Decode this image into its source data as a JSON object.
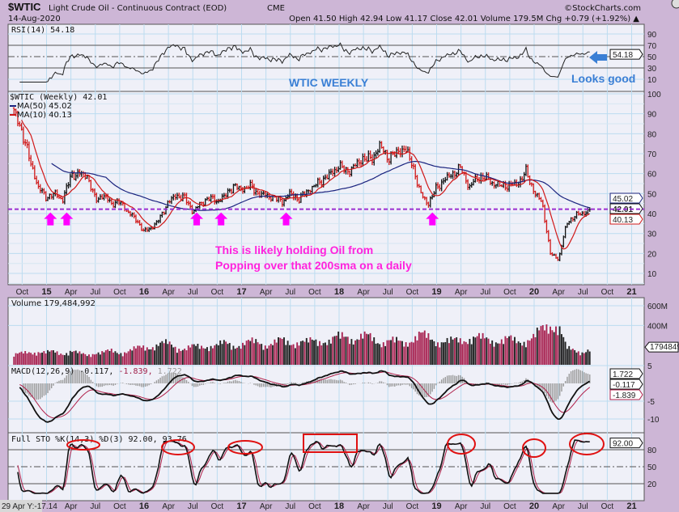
{
  "header": {
    "symbol": "$WTIC",
    "name": "Light Crude Oil - Continuous Contract (EOD)",
    "exchange": "CME",
    "watermark": "©StockCharts.com",
    "date": "14-Aug-2020",
    "quote": "Open 41.50  High 42.94  Low 41.17  Close 42.01  Volume 179.5M  Chg +0.79 (+1.92%) ▲"
  },
  "annotations": {
    "title": "WTIC WEEKLY",
    "looks_good": "Looks good",
    "note_line1": "This is likely holding Oil from",
    "note_line2": "Popping over that 200sma on a daily",
    "support_level": 42.2,
    "arrow_dates": [
      "2015-01",
      "2015-03",
      "2016-07",
      "2016-10",
      "2017-06",
      "2018-12"
    ],
    "arrow_color": "#ff00ff",
    "note_color": "#ff22dd",
    "blue_note_color": "#3a7fd5",
    "circle_color": "#e01010"
  },
  "tooltip": "29 Apr Y:-17.14",
  "chart_data": {
    "type": "line",
    "title": "$WTIC Light Crude Oil - Continuous Contract (EOD) Weekly",
    "start_month": "2014-09",
    "x_tick_labels": [
      "Oct",
      "15",
      "Apr",
      "Jul",
      "Oct",
      "16",
      "Apr",
      "Jul",
      "Oct",
      "17",
      "Apr",
      "Jul",
      "Oct",
      "18",
      "Apr",
      "Jul",
      "Oct",
      "19",
      "Apr",
      "Jul",
      "Oct",
      "20",
      "Apr",
      "Jul",
      "Oct",
      "21"
    ],
    "rsi": {
      "legend": "RSI(14) 54.18",
      "value_tag": "54.18",
      "ylim": [
        0,
        100
      ],
      "ticks": [
        "90",
        "70",
        "50",
        "30",
        "10"
      ],
      "tick_values": [
        90,
        70,
        50,
        30,
        10
      ]
    },
    "price": {
      "legend": "$WTIC (Weekly) 42.01",
      "ma50_legend": "MA(50) 45.02",
      "ma10_legend": "MA(10) 40.13",
      "ma50_tag": "45.02",
      "close_tag": "42.01",
      "ma10_tag": "40.13",
      "ylim": [
        5,
        100
      ],
      "ticks": [
        "100",
        "90",
        "80",
        "70",
        "60",
        "50",
        "40",
        "30",
        "20",
        "10"
      ],
      "tick_values": [
        100,
        90,
        80,
        70,
        60,
        50,
        40,
        30,
        20,
        10
      ],
      "monthly_close": [
        91,
        81,
        66,
        53,
        48,
        50,
        47,
        59,
        60,
        59,
        47,
        49,
        45,
        46,
        41,
        37,
        31,
        33,
        38,
        46,
        49,
        48,
        41,
        45,
        48,
        46,
        49,
        54,
        52,
        54,
        50,
        49,
        48,
        46,
        50,
        47,
        51,
        54,
        57,
        60,
        64,
        61,
        64,
        68,
        67,
        74,
        68,
        70,
        73,
        65,
        50,
        45,
        53,
        57,
        60,
        63,
        53,
        58,
        58,
        55,
        54,
        54,
        55,
        61,
        51,
        45,
        20,
        17,
        35,
        39,
        40,
        42.01
      ],
      "ma50_color": "#1a237e",
      "ma10_color": "#d01818"
    },
    "volume": {
      "legend": "Volume 179,484,992",
      "value_tag": "179484992",
      "ticks": [
        "600M",
        "400M"
      ],
      "tick_values": [
        600,
        400
      ],
      "monthly_avg_millions": [
        110,
        120,
        140,
        150,
        130,
        140,
        130,
        150,
        120,
        110,
        140,
        130,
        150,
        140,
        150,
        170,
        200,
        210,
        220,
        230,
        200,
        180,
        190,
        200,
        220,
        210,
        230,
        220,
        230,
        240,
        250,
        230,
        240,
        260,
        250,
        260,
        240,
        260,
        280,
        260,
        300,
        330,
        290,
        300,
        300,
        260,
        260,
        250,
        250,
        290,
        320,
        300,
        270,
        260,
        250,
        280,
        300,
        290,
        280,
        280,
        270,
        270,
        260,
        280,
        300,
        380,
        460,
        440,
        170,
        160,
        150,
        170
      ],
      "up_color": "#222222",
      "down_color": "#a82452"
    },
    "macd": {
      "legend_main": "MACD(12,26,9) -0.117,",
      "legend_signal": " -1.839,",
      "legend_hist": " 1.722",
      "tags": [
        "1.722",
        "-0.117",
        "-1.839"
      ],
      "ticks": [
        "5",
        "-5",
        "-10"
      ],
      "tick_values": [
        5,
        -5,
        -10
      ]
    },
    "stochastic": {
      "legend": "Full STO %K(14,3) %D(3) 92.00, 93.76",
      "value_tag": "92.00",
      "ticks": [
        "80",
        "50",
        "20"
      ],
      "tick_values": [
        80,
        50,
        20
      ]
    }
  }
}
